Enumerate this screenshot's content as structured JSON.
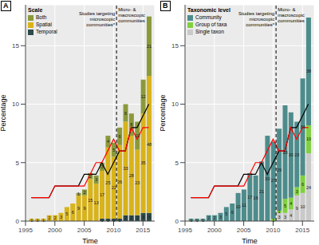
{
  "chart_data": [
    {
      "type": "bar",
      "panel": "A",
      "stacked": true,
      "grid": true,
      "legend": "top-left",
      "legend_title": "Scale",
      "x_label": "Time",
      "y_label": "Percentage",
      "x": [
        1996,
        1997,
        1998,
        1999,
        2000,
        2001,
        2002,
        2003,
        2004,
        2005,
        2006,
        2007,
        2008,
        2009,
        2010,
        2011,
        2012,
        2013,
        2014,
        2015,
        2016
      ],
      "xlim": [
        1995,
        2017
      ],
      "xticks": [
        1995,
        2000,
        2005,
        2010,
        2015
      ],
      "ylim": [
        0,
        18.5
      ],
      "yticks": [
        0,
        5,
        10,
        15
      ],
      "vline": {
        "x": 2010.5,
        "line_style": "dashed"
      },
      "annotations": [
        {
          "text": [
            "Studies targeting",
            "microscopic",
            "communities*"
          ]
        },
        {
          "text": [
            "Micro- &",
            "macroscopic",
            "communities"
          ]
        }
      ],
      "series": [
        {
          "name": "Both",
          "color": "#8a9a3b",
          "values": [
            0,
            0,
            0,
            0,
            0,
            0,
            0,
            0,
            0.2,
            0.5,
            0.5,
            0.7,
            0.7,
            1,
            1.2,
            1.5,
            1.5,
            1.9,
            2.4,
            2.9,
            5.1
          ],
          "counts": [
            0,
            0,
            0,
            0,
            0,
            0,
            0,
            0,
            1,
            2,
            2,
            3,
            3,
            4,
            5,
            6,
            6,
            8,
            10,
            12,
            21
          ]
        },
        {
          "name": "Spatial",
          "color": "#d8b31a",
          "values": [
            0.2,
            0.2,
            0.2,
            0.5,
            0.5,
            0.7,
            1.2,
            1.5,
            2.2,
            2.2,
            3.6,
            3.2,
            4.1,
            6.1,
            5.3,
            6.3,
            8,
            6.8,
            5.6,
            8.5,
            11.7
          ],
          "counts": [
            1,
            1,
            1,
            2,
            2,
            3,
            5,
            6,
            9,
            9,
            15,
            13,
            17,
            25,
            22,
            26,
            33,
            28,
            23,
            35,
            48
          ]
        },
        {
          "name": "Temporal",
          "color": "#2e4a4a",
          "values": [
            0,
            0,
            0,
            0,
            0,
            0,
            0,
            0,
            0,
            0,
            0,
            0,
            0.2,
            0.2,
            0.2,
            0.2,
            0.5,
            0.5,
            0.5,
            0.7,
            0.7
          ],
          "counts": [
            0,
            0,
            0,
            0,
            0,
            0,
            0,
            0,
            0,
            0,
            0,
            0,
            1,
            1,
            1,
            1,
            2,
            2,
            2,
            3,
            3
          ]
        },
        {
          "type": "line",
          "color": "#000000",
          "values": [
            2,
            2,
            2,
            2,
            3,
            3,
            3,
            3,
            3,
            4,
            4,
            4,
            5,
            4,
            5,
            6,
            6,
            8,
            8,
            9,
            10
          ]
        },
        {
          "type": "line",
          "color": "#ff0000",
          "values": [
            2,
            2,
            2,
            2,
            3,
            3,
            3,
            3,
            3,
            3,
            4,
            5,
            5,
            6,
            7,
            6,
            6,
            8,
            7,
            8,
            8
          ]
        }
      ]
    },
    {
      "type": "bar",
      "panel": "B",
      "stacked": true,
      "grid": true,
      "legend": "top-left",
      "legend_title": "Taxonomic level",
      "x_label": "Time",
      "y_label": "Percentage",
      "x": [
        1996,
        1997,
        1998,
        1999,
        2000,
        2001,
        2002,
        2003,
        2004,
        2005,
        2006,
        2007,
        2008,
        2009,
        2010,
        2011,
        2012,
        2013,
        2014,
        2015,
        2016
      ],
      "xlim": [
        1995,
        2017
      ],
      "xticks": [
        1995,
        2000,
        2005,
        2010,
        2015
      ],
      "ylim": [
        0,
        18.5
      ],
      "yticks": [
        0,
        5,
        10,
        15
      ],
      "vline": {
        "x": 2010.5,
        "line_style": "dashed"
      },
      "annotations": [
        {
          "text": [
            "Studies targeting",
            "microscopic",
            "communities*"
          ]
        },
        {
          "text": [
            "Micro- &",
            "macroscopic",
            "communities"
          ]
        }
      ],
      "series": [
        {
          "name": "Community",
          "color": "#4e8c8c",
          "values": [
            0.2,
            0.2,
            0.2,
            0.5,
            0.5,
            0.7,
            1.2,
            1.5,
            2.4,
            2.7,
            4.1,
            3.9,
            5.1,
            7.3,
            6.6,
            7,
            8,
            7.3,
            5.6,
            8.3,
            9.2
          ],
          "counts": [
            1,
            1,
            1,
            2,
            2,
            3,
            5,
            6,
            10,
            11,
            17,
            16,
            21,
            30,
            27,
            29,
            33,
            30,
            23,
            34,
            38
          ]
        },
        {
          "name": "Group of taxa",
          "color": "#80d040",
          "values": [
            0,
            0,
            0,
            0,
            0,
            0,
            0,
            0,
            0,
            0,
            0,
            0,
            0,
            0,
            0.2,
            0.2,
            1.2,
            1,
            0.7,
            1.5,
            2.4
          ],
          "counts": [
            0,
            0,
            0,
            0,
            0,
            0,
            0,
            0,
            0,
            0,
            0,
            0,
            0,
            0,
            1,
            1,
            5,
            4,
            3,
            6,
            10
          ]
        },
        {
          "name": "Single taxon",
          "color": "#c9c9c9",
          "values": [
            0,
            0,
            0,
            0,
            0,
            0,
            0,
            0,
            0,
            0,
            0,
            0,
            0,
            0,
            0,
            0.7,
            0.7,
            1,
            2.2,
            2.4,
            5.8
          ],
          "counts": [
            0,
            0,
            0,
            0,
            0,
            0,
            0,
            0,
            0,
            0,
            0,
            0,
            0,
            0,
            0,
            3,
            3,
            4,
            9,
            10,
            24
          ]
        },
        {
          "type": "line",
          "color": "#000000",
          "values": [
            2,
            2,
            2,
            2,
            3,
            3,
            3,
            3,
            3,
            4,
            4,
            4,
            5,
            4,
            5,
            6,
            6,
            8,
            8,
            9,
            10
          ]
        },
        {
          "type": "line",
          "color": "#ff0000",
          "values": [
            2,
            2,
            2,
            2,
            3,
            3,
            3,
            3,
            3,
            3,
            4,
            5,
            5,
            6,
            7,
            6,
            6,
            8,
            7,
            8,
            8
          ]
        }
      ]
    }
  ]
}
